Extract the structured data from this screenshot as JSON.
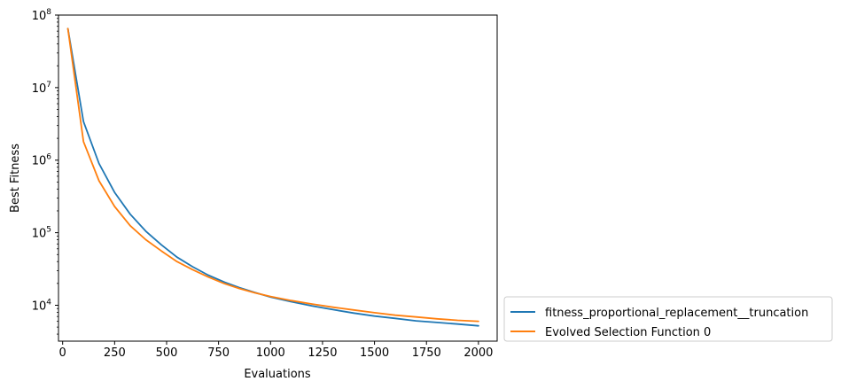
{
  "chart_data": {
    "type": "line",
    "xlabel": "Evaluations",
    "ylabel": "Best Fitness",
    "yscale": "log",
    "xlim": [
      -20,
      2090
    ],
    "ylim": [
      3200,
      100000000
    ],
    "x_ticks": [
      0,
      250,
      500,
      750,
      1000,
      1250,
      1500,
      1750,
      2000
    ],
    "x_tick_labels": [
      "0",
      "250",
      "500",
      "750",
      "1000",
      "1250",
      "1500",
      "1750",
      "2000"
    ],
    "y_ticks": [
      {
        "value": 10000,
        "base": "10",
        "exp": "4"
      },
      {
        "value": 100000,
        "base": "10",
        "exp": "5"
      },
      {
        "value": 1000000,
        "base": "10",
        "exp": "6"
      },
      {
        "value": 10000000,
        "base": "10",
        "exp": "7"
      },
      {
        "value": 100000000,
        "base": "10",
        "exp": "8"
      }
    ],
    "grid": false,
    "legend_position": "outside lower-right",
    "x": [
      25,
      100,
      175,
      250,
      325,
      400,
      475,
      550,
      625,
      700,
      775,
      850,
      925,
      1000,
      1100,
      1200,
      1300,
      1400,
      1500,
      1600,
      1700,
      1800,
      1900,
      2000
    ],
    "series": [
      {
        "name": "fitness_proportional_replacement__truncation",
        "color": "#1f77b4",
        "values": [
          65000000,
          3400000,
          900000,
          360000,
          180000,
          105000,
          68000,
          46000,
          34000,
          26000,
          21000,
          17500,
          15000,
          13000,
          11200,
          9800,
          8700,
          7800,
          7100,
          6600,
          6100,
          5800,
          5500,
          5200
        ]
      },
      {
        "name": "Evolved Selection Function 0",
        "color": "#ff7f0e",
        "values": [
          65000000,
          1800000,
          520000,
          230000,
          125000,
          80000,
          56000,
          40000,
          31000,
          24500,
          20000,
          17000,
          14800,
          13200,
          11600,
          10400,
          9400,
          8600,
          7900,
          7300,
          6900,
          6500,
          6200,
          6000
        ]
      }
    ]
  }
}
